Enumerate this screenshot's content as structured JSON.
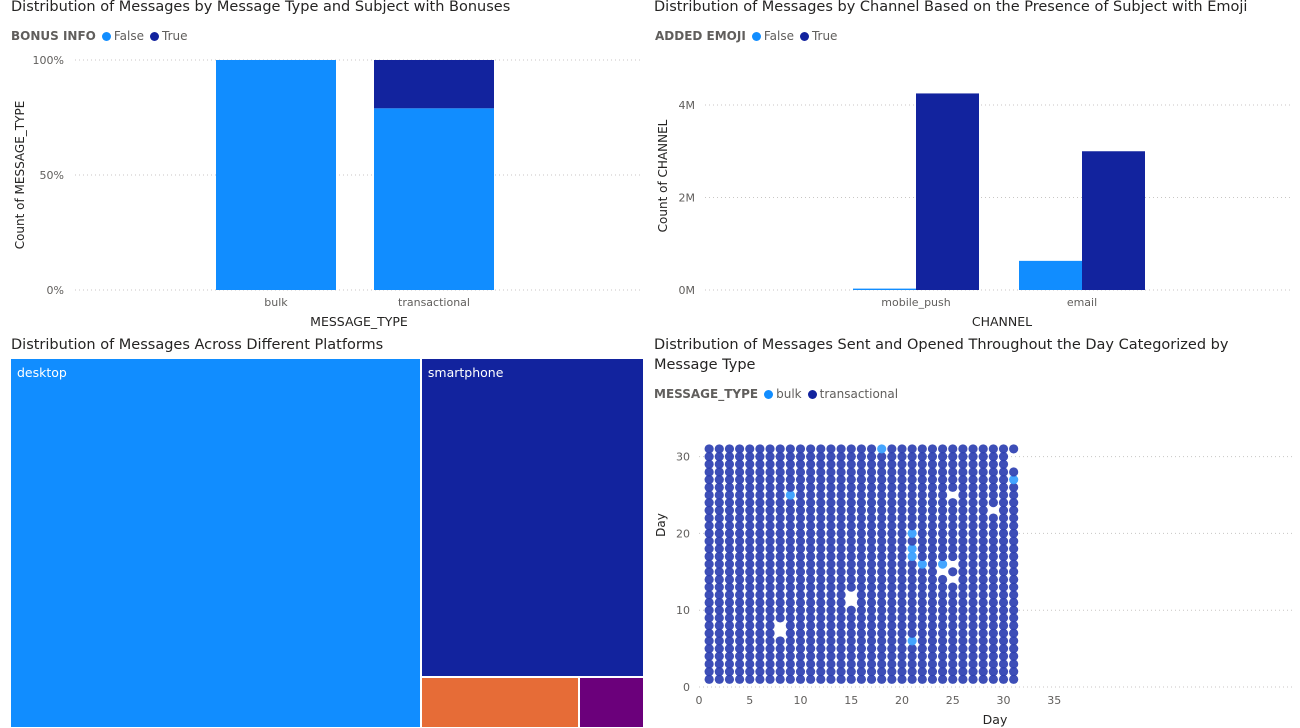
{
  "colors": {
    "false": "#118dff",
    "true": "#12239e",
    "bulk": "#118dff",
    "transactional": "#12239e",
    "tablet": "#e66c37",
    "other": "#6b007b"
  },
  "chart_data": [
    {
      "type": "bar",
      "title": "Distribution of Messages by Message Type and Subject with Bonuses",
      "legend_title": "BONUS INFO",
      "stacked_percent": true,
      "xlabel": "MESSAGE_TYPE",
      "ylabel": "Count of MESSAGE_TYPE",
      "categories": [
        "bulk",
        "transactional"
      ],
      "series": [
        {
          "name": "False",
          "values": [
            100,
            79
          ]
        },
        {
          "name": "True",
          "values": [
            0,
            21
          ]
        }
      ],
      "yticks": [
        "0%",
        "50%",
        "100%"
      ],
      "ylim": [
        0,
        100
      ],
      "grid": true,
      "legend_position": "top-left"
    },
    {
      "type": "bar",
      "title": "Distribution of Messages by Channel Based on the Presence of Subject with Emoji",
      "legend_title": "ADDED EMOJI",
      "xlabel": "CHANNEL",
      "ylabel": "Count of CHANNEL",
      "categories": [
        "mobile_push",
        "email"
      ],
      "series": [
        {
          "name": "False",
          "values": [
            30000,
            630000
          ]
        },
        {
          "name": "True",
          "values": [
            4250000,
            3000000
          ]
        }
      ],
      "yticks": [
        "0M",
        "2M",
        "4M"
      ],
      "ylim": [
        0,
        4800000
      ],
      "grid": true,
      "legend_position": "top-left"
    },
    {
      "type": "treemap",
      "title": "Distribution of Messages Across Different Platforms",
      "items": [
        {
          "label": "desktop",
          "value": 64.7
        },
        {
          "label": "smartphone",
          "value": 30.5
        },
        {
          "label": "",
          "value": 3.4
        },
        {
          "label": "",
          "value": 1.4
        }
      ]
    },
    {
      "type": "scatter",
      "title": "Distribution of Messages Sent and Opened Throughout the Day Categorized by Message Type",
      "legend_title": "MESSAGE_TYPE",
      "legend": [
        "bulk",
        "transactional"
      ],
      "xlabel": "Day",
      "ylabel": "Day",
      "xlim": [
        0,
        35
      ],
      "ylim": [
        0,
        35
      ],
      "xticks": [
        0,
        5,
        10,
        15,
        20,
        25,
        30,
        35
      ],
      "yticks": [
        0,
        10,
        20,
        30
      ],
      "grid": true,
      "day_range": [
        1,
        31
      ],
      "missing_points": [
        [
          8,
          7
        ],
        [
          8,
          8
        ],
        [
          15,
          11
        ],
        [
          15,
          12
        ],
        [
          25,
          25
        ],
        [
          29,
          23
        ],
        [
          31,
          29
        ],
        [
          31,
          30
        ],
        [
          25,
          14
        ],
        [
          25,
          16
        ],
        [
          24,
          15
        ]
      ],
      "bulk_points": [
        [
          9,
          25
        ],
        [
          21,
          6
        ],
        [
          21,
          17
        ],
        [
          21,
          18
        ],
        [
          21,
          20
        ],
        [
          22,
          16
        ],
        [
          24,
          16
        ],
        [
          18,
          31
        ],
        [
          31,
          27
        ]
      ]
    }
  ]
}
